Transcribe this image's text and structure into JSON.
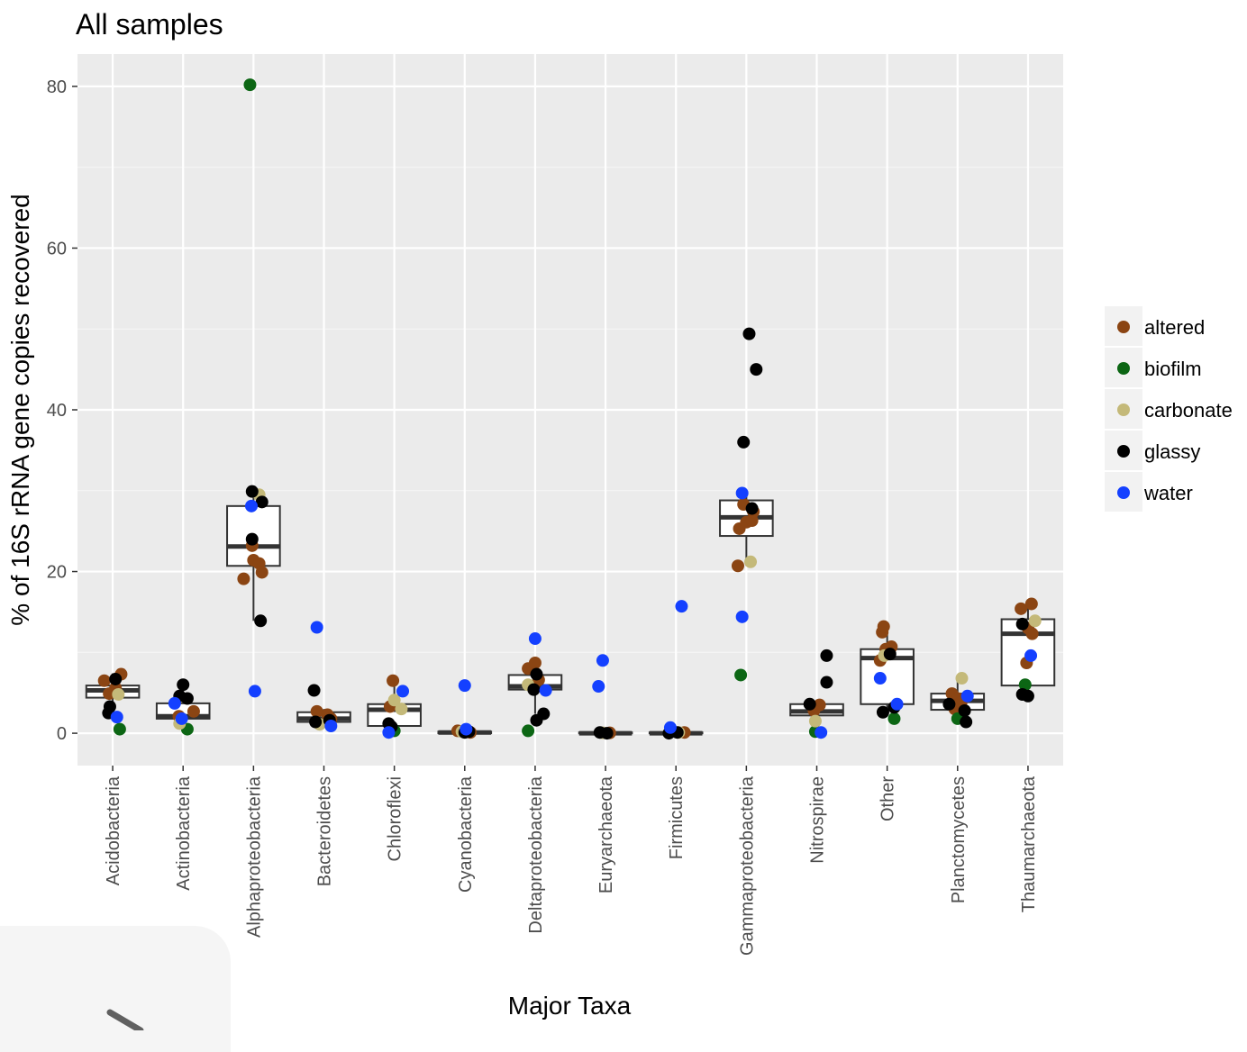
{
  "chart_data": {
    "type": "scatter",
    "subtype": "boxplot-with-jittered-points",
    "title": "All samples",
    "xlabel": "Major Taxa",
    "ylabel": "% of 16S rRNA gene copies recovered",
    "ylim": [
      -4,
      84
    ],
    "yticks": [
      0,
      20,
      40,
      60,
      80
    ],
    "grid": true,
    "legend_position": "right",
    "categories": [
      "Acidobacteria",
      "Actinobacteria",
      "Alphaproteobacteria",
      "Bacteroidetes",
      "Chloroflexi",
      "Cyanobacteria",
      "Deltaproteobacteria",
      "Euryarchaeota",
      "Firmicutes",
      "Gammaproteobacteria",
      "Nitrospirae",
      "Other",
      "Planctomycetes",
      "Thaumarchaeota"
    ],
    "boxes": [
      {
        "q1": 4.4,
        "median": 5.3,
        "q3": 5.9,
        "lower": 2.3,
        "upper": 7.4
      },
      {
        "q1": 1.8,
        "median": 2.1,
        "q3": 3.7,
        "lower": 0.5,
        "upper": 5.9
      },
      {
        "q1": 20.7,
        "median": 23.1,
        "q3": 28.1,
        "lower": 13.9,
        "upper": 29.9
      },
      {
        "q1": 1.4,
        "median": 1.8,
        "q3": 2.6,
        "lower": 1.0,
        "upper": 3.0
      },
      {
        "q1": 0.9,
        "median": 2.9,
        "q3": 3.6,
        "lower": 0.1,
        "upper": 6.1
      },
      {
        "q1": 0.0,
        "median": 0.1,
        "q3": 0.2,
        "lower": 0.0,
        "upper": 0.4
      },
      {
        "q1": 5.4,
        "median": 5.8,
        "q3": 7.2,
        "lower": 2.4,
        "upper": 8.8
      },
      {
        "q1": 0.0,
        "median": 0.0,
        "q3": 0.1,
        "lower": 0.0,
        "upper": 0.2
      },
      {
        "q1": 0.0,
        "median": 0.0,
        "q3": 0.1,
        "lower": 0.0,
        "upper": 0.3
      },
      {
        "q1": 24.4,
        "median": 26.7,
        "q3": 28.8,
        "lower": 20.7,
        "upper": 29.6
      },
      {
        "q1": 2.2,
        "median": 2.7,
        "q3": 3.6,
        "lower": 1.4,
        "upper": 3.9
      },
      {
        "q1": 3.6,
        "median": 9.3,
        "q3": 10.4,
        "lower": 2.5,
        "upper": 13.2
      },
      {
        "q1": 2.9,
        "median": 4.0,
        "q3": 4.9,
        "lower": 1.3,
        "upper": 6.8
      },
      {
        "q1": 5.9,
        "median": 12.3,
        "q3": 14.1,
        "lower": 4.5,
        "upper": 16.0
      }
    ],
    "series": [
      {
        "name": "altered",
        "color": "#8B4513",
        "points": [
          {
            "cat": "Acidobacteria",
            "dx": -0.12,
            "y": 6.5
          },
          {
            "cat": "Acidobacteria",
            "dx": 0.12,
            "y": 7.3
          },
          {
            "cat": "Acidobacteria",
            "dx": 0.04,
            "y": 5.6
          },
          {
            "cat": "Acidobacteria",
            "dx": -0.05,
            "y": 4.9
          },
          {
            "cat": "Actinobacteria",
            "dx": 0.15,
            "y": 2.7
          },
          {
            "cat": "Actinobacteria",
            "dx": -0.06,
            "y": 2.1
          },
          {
            "cat": "Alphaproteobacteria",
            "dx": -0.14,
            "y": 19.1
          },
          {
            "cat": "Alphaproteobacteria",
            "dx": -0.02,
            "y": 23.2
          },
          {
            "cat": "Alphaproteobacteria",
            "dx": 0.0,
            "y": 21.4
          },
          {
            "cat": "Alphaproteobacteria",
            "dx": 0.08,
            "y": 21.0
          },
          {
            "cat": "Alphaproteobacteria",
            "dx": 0.12,
            "y": 19.9
          },
          {
            "cat": "Bacteroidetes",
            "dx": -0.1,
            "y": 2.7
          },
          {
            "cat": "Bacteroidetes",
            "dx": 0.05,
            "y": 2.3
          },
          {
            "cat": "Bacteroidetes",
            "dx": 0.1,
            "y": 1.8
          },
          {
            "cat": "Chloroflexi",
            "dx": -0.06,
            "y": 3.3
          },
          {
            "cat": "Chloroflexi",
            "dx": -0.02,
            "y": 6.5
          },
          {
            "cat": "Cyanobacteria",
            "dx": -0.1,
            "y": 0.3
          },
          {
            "cat": "Cyanobacteria",
            "dx": 0.08,
            "y": 0.1
          },
          {
            "cat": "Deltaproteobacteria",
            "dx": -0.1,
            "y": 8.0
          },
          {
            "cat": "Deltaproteobacteria",
            "dx": 0.0,
            "y": 8.7
          },
          {
            "cat": "Deltaproteobacteria",
            "dx": 0.05,
            "y": 6.6
          },
          {
            "cat": "Euryarchaeota",
            "dx": 0.06,
            "y": 0.05
          },
          {
            "cat": "Firmicutes",
            "dx": 0.12,
            "y": 0.1
          },
          {
            "cat": "Gammaproteobacteria",
            "dx": -0.12,
            "y": 20.7
          },
          {
            "cat": "Gammaproteobacteria",
            "dx": -0.1,
            "y": 25.3
          },
          {
            "cat": "Gammaproteobacteria",
            "dx": -0.04,
            "y": 28.3
          },
          {
            "cat": "Gammaproteobacteria",
            "dx": 0.0,
            "y": 26.1
          },
          {
            "cat": "Gammaproteobacteria",
            "dx": 0.08,
            "y": 26.3
          },
          {
            "cat": "Gammaproteobacteria",
            "dx": 0.1,
            "y": 27.4
          },
          {
            "cat": "Nitrospirae",
            "dx": 0.04,
            "y": 3.5
          },
          {
            "cat": "Nitrospirae",
            "dx": -0.04,
            "y": 2.8
          },
          {
            "cat": "Other",
            "dx": -0.07,
            "y": 12.5
          },
          {
            "cat": "Other",
            "dx": -0.05,
            "y": 13.2
          },
          {
            "cat": "Other",
            "dx": 0.06,
            "y": 10.7
          },
          {
            "cat": "Other",
            "dx": -0.1,
            "y": 9.0
          },
          {
            "cat": "Other",
            "dx": -0.02,
            "y": 10.4
          },
          {
            "cat": "Planctomycetes",
            "dx": -0.08,
            "y": 4.9
          },
          {
            "cat": "Planctomycetes",
            "dx": -0.04,
            "y": 3.0
          },
          {
            "cat": "Planctomycetes",
            "dx": 0.0,
            "y": 4.3
          },
          {
            "cat": "Planctomycetes",
            "dx": 0.05,
            "y": 3.8
          },
          {
            "cat": "Thaumarchaeota",
            "dx": -0.1,
            "y": 15.4
          },
          {
            "cat": "Thaumarchaeota",
            "dx": 0.05,
            "y": 16.0
          },
          {
            "cat": "Thaumarchaeota",
            "dx": 0.0,
            "y": 13.0
          },
          {
            "cat": "Thaumarchaeota",
            "dx": 0.06,
            "y": 12.3
          },
          {
            "cat": "Thaumarchaeota",
            "dx": -0.02,
            "y": 8.7
          }
        ]
      },
      {
        "name": "biofilm",
        "color": "#0C6614",
        "points": [
          {
            "cat": "Acidobacteria",
            "dx": 0.1,
            "y": 0.5
          },
          {
            "cat": "Actinobacteria",
            "dx": 0.06,
            "y": 0.5
          },
          {
            "cat": "Alphaproteobacteria",
            "dx": -0.05,
            "y": 80.2
          },
          {
            "cat": "Chloroflexi",
            "dx": 0.0,
            "y": 0.3
          },
          {
            "cat": "Deltaproteobacteria",
            "dx": -0.1,
            "y": 0.3
          },
          {
            "cat": "Gammaproteobacteria",
            "dx": -0.08,
            "y": 7.2
          },
          {
            "cat": "Nitrospirae",
            "dx": -0.02,
            "y": 0.2
          },
          {
            "cat": "Other",
            "dx": 0.1,
            "y": 1.8
          },
          {
            "cat": "Planctomycetes",
            "dx": 0.0,
            "y": 1.8
          },
          {
            "cat": "Thaumarchaeota",
            "dx": -0.04,
            "y": 6.0
          }
        ]
      },
      {
        "name": "carbonate",
        "color": "#C4B979",
        "points": [
          {
            "cat": "Acidobacteria",
            "dx": 0.08,
            "y": 4.8
          },
          {
            "cat": "Actinobacteria",
            "dx": -0.05,
            "y": 1.2
          },
          {
            "cat": "Alphaproteobacteria",
            "dx": 0.08,
            "y": 29.5
          },
          {
            "cat": "Bacteroidetes",
            "dx": -0.06,
            "y": 1.1
          },
          {
            "cat": "Chloroflexi",
            "dx": 0.0,
            "y": 4.1
          },
          {
            "cat": "Chloroflexi",
            "dx": 0.1,
            "y": 3.0
          },
          {
            "cat": "Cyanobacteria",
            "dx": -0.04,
            "y": 0.2
          },
          {
            "cat": "Deltaproteobacteria",
            "dx": -0.1,
            "y": 6.0
          },
          {
            "cat": "Euryarchaeota",
            "dx": -0.04,
            "y": 0.05
          },
          {
            "cat": "Firmicutes",
            "dx": 0.04,
            "y": 0.1
          },
          {
            "cat": "Gammaproteobacteria",
            "dx": 0.06,
            "y": 21.2
          },
          {
            "cat": "Nitrospirae",
            "dx": -0.02,
            "y": 1.5
          },
          {
            "cat": "Other",
            "dx": -0.04,
            "y": 9.6
          },
          {
            "cat": "Planctomycetes",
            "dx": 0.06,
            "y": 6.8
          },
          {
            "cat": "Thaumarchaeota",
            "dx": 0.1,
            "y": 13.9
          }
        ]
      },
      {
        "name": "glassy",
        "color": "#000000",
        "points": [
          {
            "cat": "Acidobacteria",
            "dx": -0.04,
            "y": 3.3
          },
          {
            "cat": "Acidobacteria",
            "dx": -0.06,
            "y": 2.5
          },
          {
            "cat": "Acidobacteria",
            "dx": 0.04,
            "y": 6.7
          },
          {
            "cat": "Actinobacteria",
            "dx": 0.0,
            "y": 6.0
          },
          {
            "cat": "Actinobacteria",
            "dx": -0.05,
            "y": 4.6
          },
          {
            "cat": "Actinobacteria",
            "dx": 0.06,
            "y": 4.3
          },
          {
            "cat": "Alphaproteobacteria",
            "dx": -0.02,
            "y": 29.9
          },
          {
            "cat": "Alphaproteobacteria",
            "dx": 0.12,
            "y": 28.6
          },
          {
            "cat": "Alphaproteobacteria",
            "dx": -0.02,
            "y": 24.0
          },
          {
            "cat": "Alphaproteobacteria",
            "dx": 0.1,
            "y": 13.9
          },
          {
            "cat": "Bacteroidetes",
            "dx": -0.14,
            "y": 5.3
          },
          {
            "cat": "Bacteroidetes",
            "dx": -0.12,
            "y": 1.4
          },
          {
            "cat": "Bacteroidetes",
            "dx": 0.08,
            "y": 1.6
          },
          {
            "cat": "Chloroflexi",
            "dx": -0.08,
            "y": 1.2
          },
          {
            "cat": "Chloroflexi",
            "dx": -0.04,
            "y": 0.8
          },
          {
            "cat": "Cyanobacteria",
            "dx": 0.0,
            "y": 0.1
          },
          {
            "cat": "Cyanobacteria",
            "dx": 0.06,
            "y": 0.2
          },
          {
            "cat": "Deltaproteobacteria",
            "dx": 0.02,
            "y": 7.3
          },
          {
            "cat": "Deltaproteobacteria",
            "dx": -0.02,
            "y": 5.4
          },
          {
            "cat": "Deltaproteobacteria",
            "dx": 0.02,
            "y": 1.6
          },
          {
            "cat": "Deltaproteobacteria",
            "dx": 0.12,
            "y": 2.4
          },
          {
            "cat": "Euryarchaeota",
            "dx": -0.08,
            "y": 0.1
          },
          {
            "cat": "Euryarchaeota",
            "dx": 0.02,
            "y": 0.0
          },
          {
            "cat": "Firmicutes",
            "dx": -0.1,
            "y": 0.0
          },
          {
            "cat": "Firmicutes",
            "dx": 0.02,
            "y": 0.1
          },
          {
            "cat": "Gammaproteobacteria",
            "dx": 0.04,
            "y": 49.4
          },
          {
            "cat": "Gammaproteobacteria",
            "dx": 0.14,
            "y": 45.0
          },
          {
            "cat": "Gammaproteobacteria",
            "dx": -0.04,
            "y": 36.0
          },
          {
            "cat": "Gammaproteobacteria",
            "dx": 0.08,
            "y": 27.8
          },
          {
            "cat": "Nitrospirae",
            "dx": 0.14,
            "y": 9.6
          },
          {
            "cat": "Nitrospirae",
            "dx": 0.14,
            "y": 6.3
          },
          {
            "cat": "Nitrospirae",
            "dx": -0.1,
            "y": 3.6
          },
          {
            "cat": "Other",
            "dx": -0.06,
            "y": 2.6
          },
          {
            "cat": "Other",
            "dx": 0.1,
            "y": 3.2
          },
          {
            "cat": "Other",
            "dx": 0.04,
            "y": 9.8
          },
          {
            "cat": "Planctomycetes",
            "dx": -0.12,
            "y": 3.6
          },
          {
            "cat": "Planctomycetes",
            "dx": 0.1,
            "y": 2.8
          },
          {
            "cat": "Planctomycetes",
            "dx": 0.12,
            "y": 1.4
          },
          {
            "cat": "Thaumarchaeota",
            "dx": -0.08,
            "y": 13.5
          },
          {
            "cat": "Thaumarchaeota",
            "dx": -0.08,
            "y": 4.8
          },
          {
            "cat": "Thaumarchaeota",
            "dx": 0.0,
            "y": 4.6
          }
        ]
      },
      {
        "name": "water",
        "color": "#1440FF",
        "points": [
          {
            "cat": "Acidobacteria",
            "dx": 0.06,
            "y": 2.0
          },
          {
            "cat": "Actinobacteria",
            "dx": -0.12,
            "y": 3.7
          },
          {
            "cat": "Actinobacteria",
            "dx": -0.02,
            "y": 1.8
          },
          {
            "cat": "Alphaproteobacteria",
            "dx": -0.03,
            "y": 28.1
          },
          {
            "cat": "Alphaproteobacteria",
            "dx": 0.02,
            "y": 5.2
          },
          {
            "cat": "Bacteroidetes",
            "dx": -0.1,
            "y": 13.1
          },
          {
            "cat": "Bacteroidetes",
            "dx": 0.1,
            "y": 0.9
          },
          {
            "cat": "Chloroflexi",
            "dx": 0.12,
            "y": 5.2
          },
          {
            "cat": "Chloroflexi",
            "dx": -0.08,
            "y": 0.1
          },
          {
            "cat": "Cyanobacteria",
            "dx": 0.0,
            "y": 5.9
          },
          {
            "cat": "Cyanobacteria",
            "dx": 0.02,
            "y": 0.5
          },
          {
            "cat": "Deltaproteobacteria",
            "dx": 0.0,
            "y": 11.7
          },
          {
            "cat": "Deltaproteobacteria",
            "dx": 0.15,
            "y": 5.3
          },
          {
            "cat": "Euryarchaeota",
            "dx": -0.1,
            "y": 5.8
          },
          {
            "cat": "Euryarchaeota",
            "dx": -0.04,
            "y": 9.0
          },
          {
            "cat": "Firmicutes",
            "dx": 0.08,
            "y": 15.7
          },
          {
            "cat": "Firmicutes",
            "dx": -0.08,
            "y": 0.7
          },
          {
            "cat": "Gammaproteobacteria",
            "dx": -0.06,
            "y": 29.7
          },
          {
            "cat": "Gammaproteobacteria",
            "dx": -0.06,
            "y": 14.4
          },
          {
            "cat": "Nitrospirae",
            "dx": 0.06,
            "y": 0.1
          },
          {
            "cat": "Other",
            "dx": -0.1,
            "y": 6.8
          },
          {
            "cat": "Other",
            "dx": 0.14,
            "y": 3.6
          },
          {
            "cat": "Planctomycetes",
            "dx": 0.14,
            "y": 4.6
          },
          {
            "cat": "Thaumarchaeota",
            "dx": 0.04,
            "y": 9.6
          }
        ]
      }
    ]
  },
  "decor": {
    "pencil_icon": "pencil-icon"
  }
}
